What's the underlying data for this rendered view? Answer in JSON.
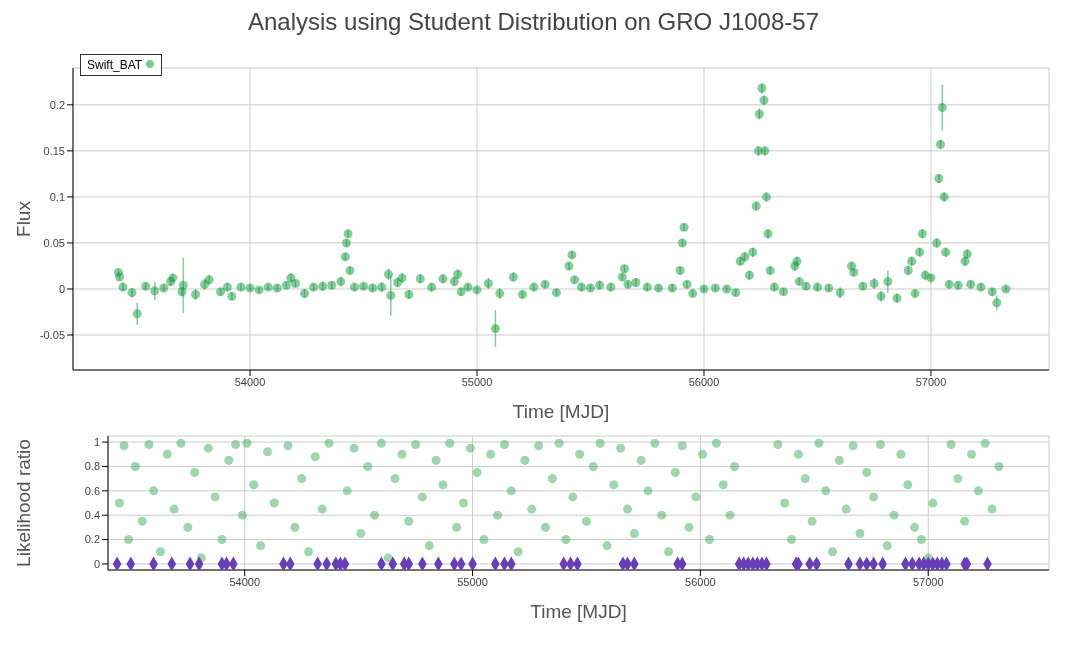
{
  "chart_data": [
    {
      "type": "scatter",
      "title": "Analysis using Student Distribution on GRO J1008-57",
      "xlabel": "Time [MJD]",
      "ylabel": "Flux",
      "xlim": [
        53220,
        57520
      ],
      "xticks": [
        54000,
        55000,
        56000,
        57000
      ],
      "ylim": [
        -0.088,
        0.24
      ],
      "yticks": [
        -0.05,
        0,
        0.05,
        0.1,
        0.15,
        0.2
      ],
      "grid": true,
      "legend": "top left",
      "marker": "circle",
      "series": [
        {
          "name": "Swift_BAT",
          "color": "#109a3c",
          "x": [
            53420,
            53425,
            53440,
            53480,
            53503,
            53540,
            53580,
            53620,
            53650,
            53660,
            53700,
            53706,
            53760,
            53800,
            53820,
            53870,
            53900,
            53920,
            53960,
            54000,
            54040,
            54080,
            54120,
            54160,
            54180,
            54200,
            54240,
            54280,
            54320,
            54360,
            54400,
            54420,
            54425,
            54432,
            54440,
            54460,
            54500,
            54540,
            54580,
            54610,
            54620,
            54650,
            54670,
            54700,
            54750,
            54800,
            54850,
            54900,
            54915,
            54930,
            54960,
            55000,
            55050,
            55081,
            55100,
            55160,
            55200,
            55250,
            55300,
            55350,
            55405,
            55418,
            55430,
            55460,
            55500,
            55540,
            55590,
            55640,
            55650,
            55665,
            55700,
            55750,
            55800,
            55860,
            55895,
            55905,
            55912,
            55925,
            55950,
            56000,
            56050,
            56100,
            56140,
            56160,
            56180,
            56200,
            56215,
            56230,
            56240,
            56244,
            56255,
            56264,
            56268,
            56275,
            56282,
            56292,
            56310,
            56350,
            56400,
            56410,
            56420,
            56450,
            56500,
            56550,
            56600,
            56650,
            56660,
            56700,
            56750,
            56780,
            56810,
            56850,
            56900,
            56915,
            56930,
            56950,
            56962,
            56975,
            57000,
            57025,
            57035,
            57042,
            57050,
            57058,
            57065,
            57080,
            57120,
            57150,
            57160,
            57175,
            57220,
            57270,
            57290,
            57330
          ],
          "values": [
            0.018,
            0.013,
            0.002,
            -0.004,
            -0.027,
            0.003,
            -0.002,
            0.001,
            0.008,
            0.012,
            -0.003,
            0.004,
            -0.006,
            0.005,
            0.01,
            -0.003,
            0.002,
            -0.008,
            0.002,
            0.001,
            -0.001,
            0.002,
            0.001,
            0.004,
            0.012,
            0.006,
            -0.005,
            0.002,
            0.003,
            0.004,
            0.008,
            0.035,
            0.05,
            0.06,
            0.02,
            0.002,
            0.003,
            0.001,
            0.002,
            0.016,
            -0.007,
            0.007,
            0.012,
            -0.006,
            0.011,
            0.002,
            0.011,
            0.008,
            0.016,
            -0.003,
            0.002,
            -0.001,
            0.006,
            -0.043,
            -0.005,
            0.013,
            -0.006,
            0.002,
            0.005,
            -0.004,
            0.025,
            0.037,
            0.01,
            0.002,
            0.001,
            0.004,
            0.002,
            0.013,
            0.022,
            0.005,
            0.007,
            0.002,
            0.001,
            0.001,
            0.02,
            0.05,
            0.067,
            0.005,
            -0.005,
            0,
            0.001,
            0,
            -0.004,
            0.03,
            0.035,
            0.015,
            0.04,
            0.09,
            0.15,
            0.19,
            0.218,
            0.205,
            0.15,
            0.1,
            0.06,
            0.02,
            0.002,
            -0.003,
            0.025,
            0.03,
            0.008,
            0.003,
            0.002,
            0.001,
            -0.004,
            0.025,
            0.018,
            0.003,
            0.006,
            -0.008,
            0.008,
            -0.01,
            0.02,
            0.03,
            -0.005,
            0.04,
            0.06,
            0.015,
            0.012,
            0.05,
            0.12,
            0.157,
            0.197,
            0.1,
            0.04,
            0.005,
            0.004,
            0.03,
            0.038,
            0.005,
            0.002,
            -0.003,
            -0.015,
            0
          ],
          "errors": [
            0.003,
            0.003,
            0.004,
            0.005,
            0.012,
            0.004,
            0.01,
            0.004,
            0.005,
            0.004,
            0.005,
            0.03,
            0.006,
            0.006,
            0.005,
            0.004,
            0.004,
            0.004,
            0.004,
            0.003,
            0.003,
            0.003,
            0.004,
            0.004,
            0.005,
            0.004,
            0.005,
            0.004,
            0.005,
            0.004,
            0.005,
            0.004,
            0.004,
            0.004,
            0.004,
            0.004,
            0.003,
            0.004,
            0.005,
            0.006,
            0.022,
            0.005,
            0.005,
            0.005,
            0.005,
            0.004,
            0.005,
            0.005,
            0.005,
            0.004,
            0.004,
            0.004,
            0.006,
            0.02,
            0.006,
            0.005,
            0.004,
            0.004,
            0.004,
            0.004,
            0.004,
            0.004,
            0.004,
            0.004,
            0.004,
            0.005,
            0.004,
            0.004,
            0.004,
            0.004,
            0.005,
            0.004,
            0.004,
            0.004,
            0.004,
            0.004,
            0.004,
            0.004,
            0.004,
            0.003,
            0.003,
            0.003,
            0.004,
            0.004,
            0.005,
            0.005,
            0.005,
            0.005,
            0.005,
            0.006,
            0.006,
            0.005,
            0.005,
            0.005,
            0.005,
            0.004,
            0.004,
            0.004,
            0.005,
            0.005,
            0.004,
            0.004,
            0.004,
            0.004,
            0.006,
            0.004,
            0.004,
            0.004,
            0.006,
            0.006,
            0.012,
            0.005,
            0.005,
            0.005,
            0.004,
            0.005,
            0.005,
            0.005,
            0.004,
            0.005,
            0.005,
            0.005,
            0.025,
            0.005,
            0.005,
            0.004,
            0.004,
            0.005,
            0.005,
            0.004,
            0.004,
            0.004,
            0.008,
            0.003
          ]
        }
      ]
    },
    {
      "type": "scatter",
      "xlabel": "Time [MJD]",
      "ylabel": "Likelihood ratio",
      "xlim": [
        53400,
        57530
      ],
      "xticks": [
        54000,
        55000,
        56000,
        57000
      ],
      "ylim": [
        -0.05,
        1.05
      ],
      "yticks": [
        0,
        0.2,
        0.4,
        0.6,
        0.8,
        1
      ],
      "grid": true,
      "series": [
        {
          "color": "#3fae5f",
          "marker": "circle",
          "x": [
            53450,
            53470,
            53490,
            53520,
            53550,
            53580,
            53600,
            53630,
            53660,
            53690,
            53720,
            53750,
            53780,
            53810,
            53840,
            53870,
            53900,
            53930,
            53960,
            53990,
            54010,
            54040,
            54070,
            54100,
            54130,
            54190,
            54220,
            54250,
            54280,
            54310,
            54340,
            54370,
            54450,
            54480,
            54510,
            54540,
            54570,
            54600,
            54630,
            54660,
            54690,
            54720,
            54750,
            54780,
            54810,
            54840,
            54870,
            54900,
            54930,
            54960,
            54990,
            55020,
            55050,
            55080,
            55110,
            55140,
            55170,
            55200,
            55230,
            55260,
            55290,
            55320,
            55350,
            55380,
            55410,
            55440,
            55470,
            55500,
            55530,
            55560,
            55590,
            55620,
            55650,
            55680,
            55710,
            55740,
            55770,
            55800,
            55830,
            55860,
            55890,
            55920,
            55950,
            55980,
            56010,
            56040,
            56070,
            56100,
            56130,
            56150,
            56340,
            56370,
            56400,
            56430,
            56460,
            56490,
            56520,
            56550,
            56580,
            56610,
            56640,
            56670,
            56700,
            56730,
            56760,
            56790,
            56820,
            56850,
            56880,
            56910,
            56940,
            56970,
            57000,
            57020,
            57100,
            57130,
            57160,
            57190,
            57220,
            57250,
            57280,
            57310
          ],
          "values": [
            0.5,
            0.97,
            0.2,
            0.8,
            0.35,
            0.98,
            0.6,
            0.1,
            0.9,
            0.45,
            0.99,
            0.3,
            0.75,
            0.05,
            0.95,
            0.55,
            0.2,
            0.85,
            0.98,
            0.4,
            0.99,
            0.65,
            0.15,
            0.92,
            0.5,
            0.97,
            0.3,
            0.7,
            0.1,
            0.88,
            0.45,
            0.99,
            0.6,
            0.95,
            0.25,
            0.8,
            0.4,
            0.99,
            0.05,
            0.7,
            0.9,
            0.35,
            0.98,
            0.55,
            0.15,
            0.85,
            0.65,
            0.99,
            0.3,
            0.5,
            0.95,
            0.75,
            0.2,
            0.9,
            0.4,
            0.98,
            0.6,
            0.1,
            0.85,
            0.45,
            0.97,
            0.3,
            0.7,
            0.99,
            0.2,
            0.55,
            0.9,
            0.35,
            0.8,
            0.99,
            0.15,
            0.65,
            0.95,
            0.45,
            0.25,
            0.85,
            0.6,
            0.99,
            0.4,
            0.1,
            0.75,
            0.97,
            0.3,
            0.55,
            0.9,
            0.2,
            0.99,
            0.65,
            0.4,
            0.8,
            0.98,
            0.5,
            0.2,
            0.9,
            0.7,
            0.35,
            0.99,
            0.6,
            0.1,
            0.85,
            0.45,
            0.97,
            0.25,
            0.75,
            0.55,
            0.98,
            0.15,
            0.4,
            0.9,
            0.65,
            0.3,
            0.2,
            0.05,
            0.5,
            0.98,
            0.7,
            0.35,
            0.9,
            0.6,
            0.99,
            0.45,
            0.8
          ]
        },
        {
          "color": "#6a3db8",
          "marker": "diamond",
          "x": [
            53440,
            53500,
            53600,
            53680,
            53760,
            53800,
            53900,
            53920,
            53950,
            54170,
            54200,
            54320,
            54360,
            54400,
            54420,
            54440,
            54600,
            54650,
            54700,
            54720,
            54780,
            54850,
            54920,
            54950,
            55000,
            55100,
            55140,
            55170,
            55400,
            55430,
            55460,
            55660,
            55680,
            55710,
            55900,
            55920,
            56170,
            56190,
            56210,
            56230,
            56250,
            56270,
            56290,
            56420,
            56430,
            56480,
            56510,
            56650,
            56700,
            56730,
            56760,
            56800,
            56900,
            56930,
            56960,
            56980,
            57000,
            57020,
            57040,
            57060,
            57080,
            57160,
            57170,
            57260
          ],
          "values": [
            0,
            0,
            0,
            0,
            0,
            0,
            0,
            0,
            0,
            0,
            0,
            0,
            0,
            0,
            0,
            0,
            0,
            0,
            0,
            0,
            0,
            0,
            0,
            0,
            0,
            0,
            0,
            0,
            0,
            0,
            0,
            0,
            0,
            0,
            0,
            0,
            0,
            0,
            0,
            0,
            0,
            0,
            0,
            0,
            0,
            0,
            0,
            0,
            0,
            0,
            0,
            0,
            0,
            0,
            0,
            0,
            0,
            0,
            0,
            0,
            0,
            0,
            0,
            0
          ]
        }
      ]
    }
  ]
}
